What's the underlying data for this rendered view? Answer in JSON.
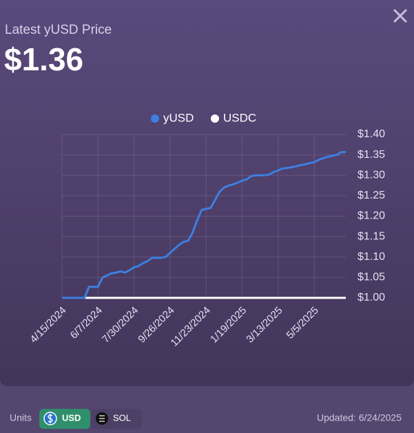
{
  "header": {
    "label": "Latest yUSD Price",
    "price": "$1.36"
  },
  "chart_data": {
    "type": "line",
    "categories": [
      "4/15/2024",
      null,
      null,
      null,
      null,
      null,
      null,
      null,
      "6/7/2024",
      null,
      null,
      null,
      null,
      null,
      null,
      null,
      "7/30/2024",
      null,
      null,
      null,
      null,
      null,
      null,
      null,
      "9/26/2024",
      null,
      null,
      null,
      null,
      null,
      null,
      null,
      "11/23/2024",
      null,
      null,
      null,
      null,
      null,
      null,
      null,
      "1/19/2025",
      null,
      null,
      null,
      null,
      null,
      null,
      null,
      "3/13/2025",
      null,
      null,
      null,
      null,
      null,
      null,
      null,
      "5/5/2025",
      null,
      null,
      null,
      null,
      null,
      null,
      null
    ],
    "series": [
      {
        "name": "yUSD",
        "color": "#3d7fe0",
        "values": [
          1.0,
          1.0,
          1.0,
          1.0,
          1.0,
          1.0,
          1.027,
          1.027,
          1.027,
          1.05,
          1.055,
          1.06,
          1.062,
          1.065,
          1.062,
          1.068,
          1.075,
          1.078,
          1.085,
          1.09,
          1.098,
          1.098,
          1.098,
          1.1,
          1.11,
          1.12,
          1.13,
          1.137,
          1.14,
          1.16,
          1.19,
          1.215,
          1.218,
          1.22,
          1.24,
          1.26,
          1.27,
          1.275,
          1.278,
          1.282,
          1.287,
          1.29,
          1.298,
          1.3,
          1.3,
          1.3,
          1.302,
          1.308,
          1.312,
          1.317,
          1.318,
          1.32,
          1.322,
          1.325,
          1.327,
          1.33,
          1.332,
          1.338,
          1.342,
          1.345,
          1.348,
          1.35,
          1.357,
          1.357
        ]
      },
      {
        "name": "USDC",
        "color": "#ffffff",
        "values": [
          1.0,
          1.0,
          1.0,
          1.0,
          1.0,
          1.0,
          1.0,
          1.0,
          1.0,
          1.0,
          1.0,
          1.0,
          1.0,
          1.0,
          1.0,
          1.0,
          1.0,
          1.0,
          1.0,
          1.0,
          1.0,
          1.0,
          1.0,
          1.0,
          1.0,
          1.0,
          1.0,
          1.0,
          1.0,
          1.0,
          1.0,
          1.0,
          1.0,
          1.0,
          1.0,
          1.0,
          1.0,
          1.0,
          1.0,
          1.0,
          1.0,
          1.0,
          1.0,
          1.0,
          1.0,
          1.0,
          1.0,
          1.0,
          1.0,
          1.0,
          1.0,
          1.0,
          1.0,
          1.0,
          1.0,
          1.0,
          1.0,
          1.0,
          1.0,
          1.0,
          1.0,
          1.0,
          1.0,
          1.0
        ]
      }
    ],
    "ylim": [
      1.0,
      1.4
    ],
    "yticks": [
      {
        "value": 1.0,
        "label": "$1.00"
      },
      {
        "value": 1.05,
        "label": "$1.05"
      },
      {
        "value": 1.1,
        "label": "$1.10"
      },
      {
        "value": 1.15,
        "label": "$1.15"
      },
      {
        "value": 1.2,
        "label": "$1.20"
      },
      {
        "value": 1.25,
        "label": "$1.25"
      },
      {
        "value": 1.3,
        "label": "$1.30"
      },
      {
        "value": 1.35,
        "label": "$1.35"
      },
      {
        "value": 1.4,
        "label": "$1.40"
      }
    ],
    "grid": true,
    "legend": "top"
  },
  "footer": {
    "units_label": "Units",
    "units": [
      "USD",
      "SOL"
    ],
    "updated": "Updated: 6/24/2025"
  }
}
